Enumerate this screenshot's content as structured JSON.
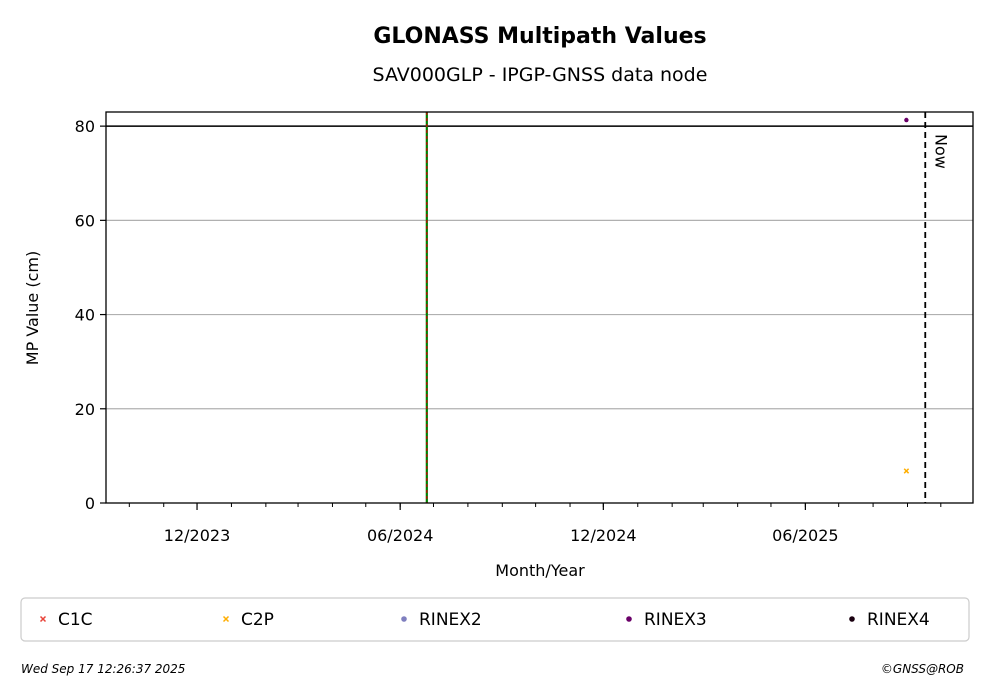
{
  "chart_data": {
    "type": "scatter",
    "title": "GLONASS Multipath Values",
    "subtitle": "SAV000GLP - IPGP-GNSS data node",
    "xlabel": "Month/Year",
    "ylabel": "MP Value (cm)",
    "xlim": [
      "2023-09-10",
      "2025-10-30"
    ],
    "ylim": [
      0,
      83
    ],
    "grid": "horizontal",
    "y_ticks": [
      0,
      20,
      40,
      60,
      80
    ],
    "x_ticks": [
      {
        "date": "2023-12-01",
        "label": "12/2023"
      },
      {
        "date": "2024-06-01",
        "label": "06/2024"
      },
      {
        "date": "2024-12-01",
        "label": "12/2024"
      },
      {
        "date": "2025-06-01",
        "label": "06/2025"
      }
    ],
    "series": [
      {
        "name": "C1C",
        "marker": "x",
        "color": "#e8443a",
        "points": []
      },
      {
        "name": "C2P",
        "marker": "x",
        "color": "#ffae00",
        "points": [
          {
            "x": "2025-08-31",
            "y": 6.8
          }
        ]
      },
      {
        "name": "RINEX2",
        "marker": "dot",
        "color": "#7f7fbf",
        "points": []
      },
      {
        "name": "RINEX3",
        "marker": "dot",
        "color": "#6a0068",
        "points": [
          {
            "x": "2025-08-31",
            "y": 81.3
          }
        ]
      },
      {
        "name": "RINEX4",
        "marker": "dot",
        "color": "#1a0010",
        "points": []
      }
    ],
    "reference_line": {
      "y": 80,
      "color": "#000000"
    },
    "event_lines": [
      {
        "date": "2024-06-25",
        "colors": [
          "#008000",
          "#cc0000"
        ]
      }
    ],
    "now_line": {
      "date": "2025-09-17",
      "label": "Now"
    },
    "legend_position": "bottom"
  },
  "footer": {
    "timestamp": "Wed Sep 17 12:26:37 2025",
    "copyright": "©GNSS@ROB"
  }
}
